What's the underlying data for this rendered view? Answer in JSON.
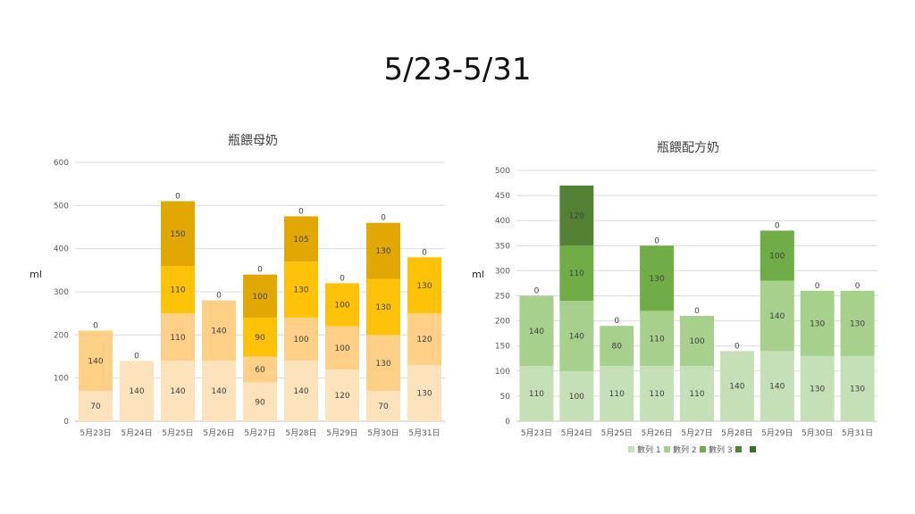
{
  "page_title": "5/23-5/31",
  "chart_data": [
    {
      "type": "bar",
      "stacked": true,
      "title": "瓶餵母奶",
      "ylabel": "ml",
      "xlabel": "",
      "ylim": [
        0,
        600
      ],
      "yticks": [
        0,
        100,
        200,
        300,
        400,
        500,
        600
      ],
      "grid": true,
      "legend": "none",
      "categories": [
        "5月23日",
        "5月24日",
        "5月25日",
        "5月26日",
        "5月27日",
        "5月28日",
        "5月29日",
        "5月30日",
        "5月31日"
      ],
      "series": [
        {
          "values": [
            70,
            140,
            140,
            140,
            90,
            140,
            120,
            70,
            130
          ],
          "color": "#fde3bb",
          "labels": [
            "70",
            "140",
            "140",
            "140",
            "90",
            "140",
            "120",
            "70",
            "130"
          ]
        },
        {
          "values": [
            140,
            0,
            110,
            140,
            60,
            100,
            100,
            130,
            120
          ],
          "color": "#fecf87",
          "labels": [
            "140",
            "",
            "110",
            "140",
            "60",
            "100",
            "100",
            "130",
            "120"
          ]
        },
        {
          "values": [
            0,
            0,
            110,
            0,
            90,
            130,
            100,
            130,
            130
          ],
          "color": "#fec309",
          "labels": [
            "",
            "",
            "110",
            "",
            "90",
            "130",
            "100",
            "130",
            "130"
          ]
        },
        {
          "values": [
            0,
            0,
            150,
            0,
            100,
            105,
            0,
            130,
            0
          ],
          "color": "#e1a702",
          "labels": [
            "",
            "",
            "150",
            "",
            "100",
            "105",
            "",
            "130",
            ""
          ]
        },
        {
          "values": [
            0,
            0,
            0,
            0,
            0,
            0,
            0,
            0,
            0
          ],
          "color": "#e1a702",
          "labels": [
            "0",
            "0",
            "0",
            "0",
            "0",
            "0",
            "0",
            "0",
            "0"
          ]
        }
      ]
    },
    {
      "type": "bar",
      "stacked": true,
      "title": "瓶餵配方奶",
      "ylabel": "ml",
      "xlabel": "",
      "ylim": [
        0,
        500
      ],
      "yticks": [
        0,
        50,
        100,
        150,
        200,
        250,
        300,
        350,
        400,
        450,
        500
      ],
      "grid": true,
      "legend": "bottom",
      "categories": [
        "5月23日",
        "5月24日",
        "5月25日",
        "5月26日",
        "5月27日",
        "5月28日",
        "5月29日",
        "5月30日",
        "5月31日"
      ],
      "series": [
        {
          "name": "數列 1",
          "values": [
            110,
            100,
            110,
            110,
            110,
            140,
            140,
            130,
            130
          ],
          "color": "#c5dfb6",
          "labels": [
            "110",
            "100",
            "110",
            "110",
            "110",
            "140",
            "140",
            "130",
            "130"
          ]
        },
        {
          "name": "數列 2",
          "values": [
            140,
            140,
            80,
            110,
            100,
            0,
            140,
            130,
            130
          ],
          "color": "#a8d08d",
          "labels": [
            "140",
            "140",
            "80",
            "110",
            "100",
            "",
            "140",
            "130",
            "130"
          ]
        },
        {
          "name": "數列 3",
          "values": [
            0,
            110,
            0,
            130,
            0,
            0,
            100,
            0,
            0
          ],
          "color": "#70ad47",
          "labels": [
            "",
            "110",
            "",
            "130",
            "",
            "",
            "100",
            "",
            ""
          ]
        },
        {
          "name": "",
          "values": [
            0,
            120,
            0,
            0,
            0,
            0,
            0,
            0,
            0
          ],
          "color": "#548235",
          "labels": [
            "",
            "120",
            "",
            "",
            "",
            "",
            "",
            "",
            ""
          ]
        },
        {
          "name": "",
          "values": [
            0,
            0,
            0,
            0,
            0,
            0,
            0,
            0,
            0
          ],
          "color": "#3c6e2a",
          "labels": [
            "0",
            "",
            "0",
            "0",
            "0",
            "0",
            "0",
            "0",
            "0"
          ]
        }
      ]
    }
  ]
}
